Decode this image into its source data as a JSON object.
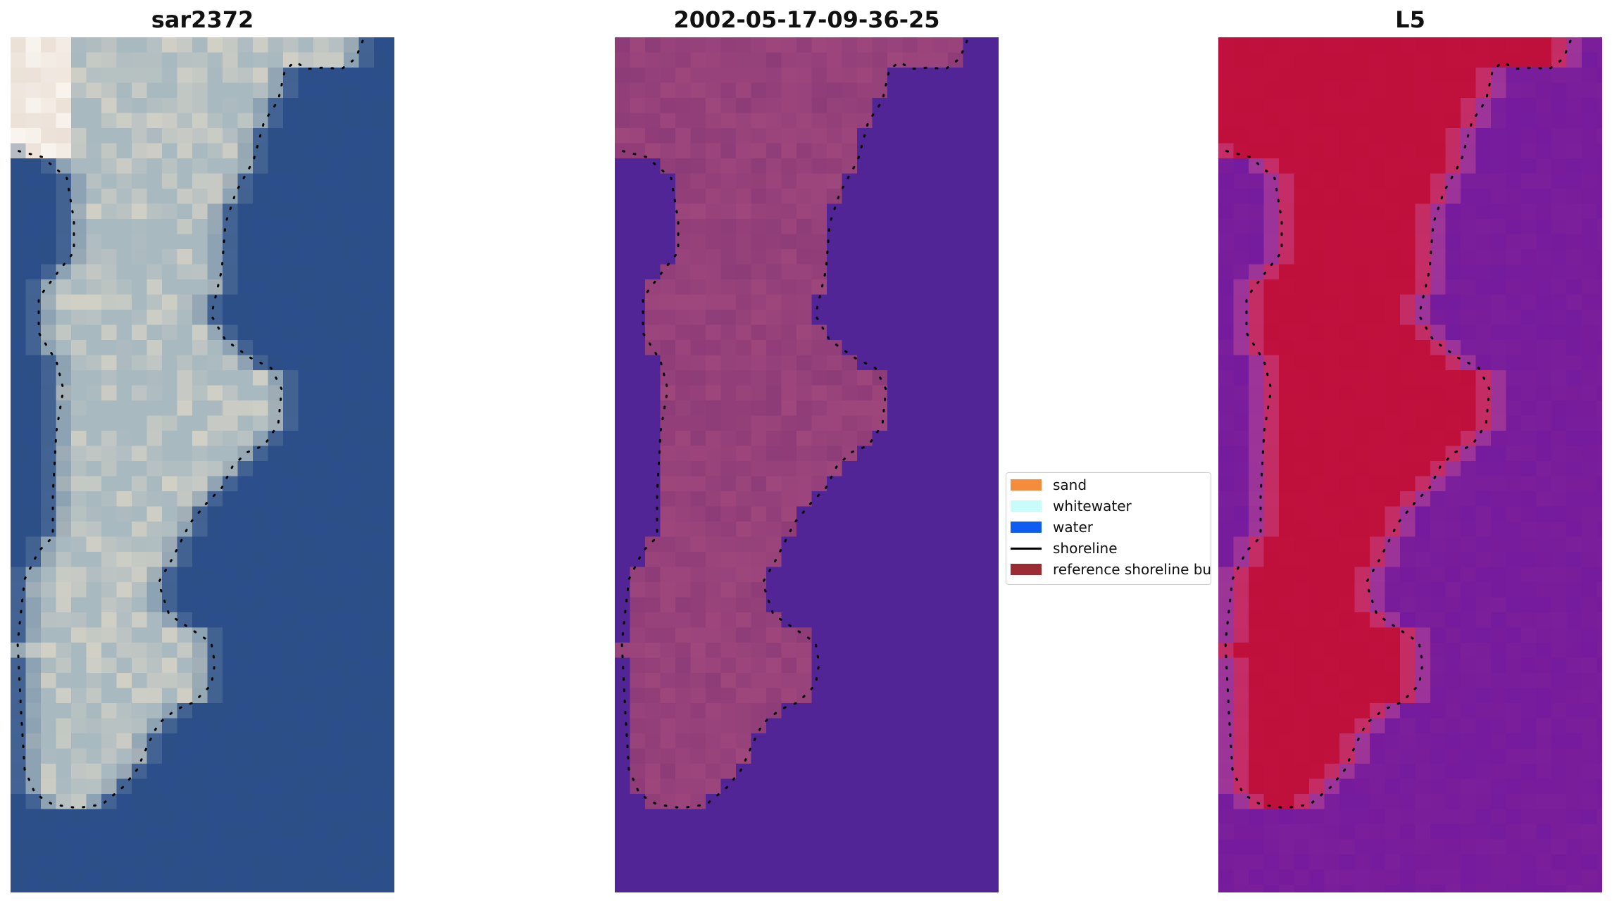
{
  "panels": [
    {
      "title": "sar2372",
      "kind": "rgb"
    },
    {
      "title": "2002-05-17-09-36-25",
      "kind": "classified"
    },
    {
      "title": "L5",
      "kind": "index"
    }
  ],
  "colors": {
    "rgb_water": "#2c4f8c",
    "rgb_land": "#a9b9c0",
    "rgb_bright": "#e6dcc8",
    "class_water": "#512596",
    "class_land": "#8e3c78",
    "index_water": "#7c1f9a",
    "index_land": "#c0103d",
    "shoreline": "#000000"
  },
  "legend": {
    "items": [
      {
        "label": "sand",
        "color": "#f58b3c",
        "type": "patch"
      },
      {
        "label": "whitewater",
        "color": "#c9fbfb",
        "type": "patch"
      },
      {
        "label": "water",
        "color": "#0f5cf2",
        "type": "patch"
      },
      {
        "label": "shoreline",
        "color": "#000000",
        "type": "line"
      },
      {
        "label": "reference shoreline buffer",
        "color": "#9b2c34",
        "type": "patch"
      }
    ]
  }
}
